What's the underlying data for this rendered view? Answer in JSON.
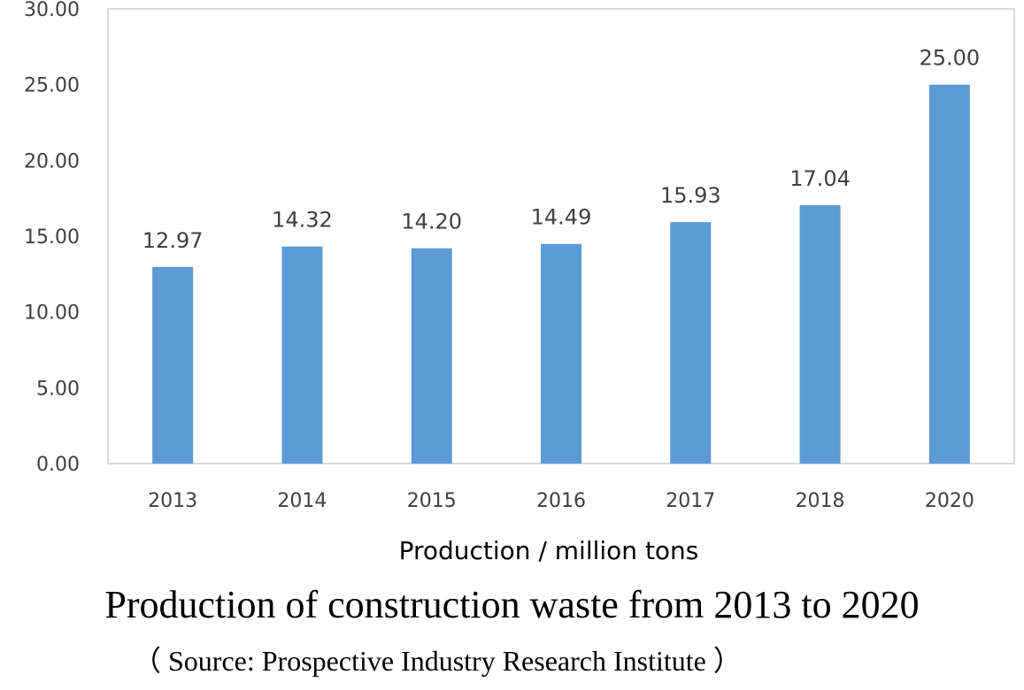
{
  "caption": {
    "title": "Production of construction waste from 2013 to 2020",
    "source": "（ Source: Prospective Industry Research Institute ）"
  },
  "chart_data": {
    "type": "bar",
    "categories": [
      "2013",
      "2014",
      "2015",
      "2016",
      "2017",
      "2018",
      "2020"
    ],
    "values": [
      12.97,
      14.32,
      14.2,
      14.49,
      15.93,
      17.04,
      25.0
    ],
    "data_labels": [
      "12.97",
      "14.32",
      "14.20",
      "14.49",
      "15.93",
      "17.04",
      "25.00"
    ],
    "title": "",
    "xlabel": "Production / million tons",
    "ylabel": "",
    "ylim": [
      0,
      30
    ],
    "yticks": [
      "0.00",
      "5.00",
      "10.00",
      "15.00",
      "20.00",
      "25.00",
      "30.00"
    ],
    "grid": false,
    "bar_color": "#5B9BD5",
    "axis_color": "#D9D9D9"
  }
}
